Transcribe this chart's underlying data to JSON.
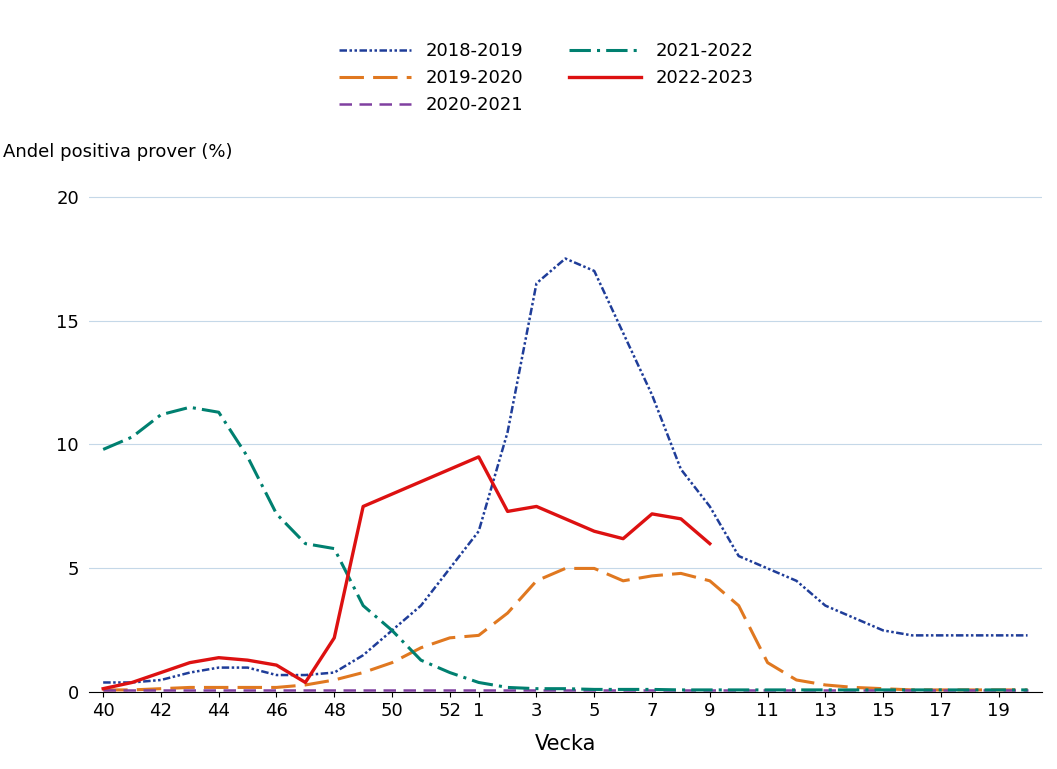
{
  "tick_weeks": [
    40,
    42,
    44,
    46,
    48,
    50,
    52,
    1,
    3,
    5,
    7,
    9,
    11,
    13,
    15,
    17,
    19
  ],
  "series": [
    {
      "label": "2018-2019",
      "color": "#1f3d99",
      "linewidth": 1.8,
      "linestyle_key": "dash_dot_dot",
      "weeks": [
        40,
        41,
        42,
        43,
        44,
        45,
        46,
        47,
        48,
        49,
        50,
        51,
        52,
        1,
        2,
        3,
        4,
        5,
        6,
        7,
        8,
        9,
        10,
        11,
        12,
        13,
        14,
        15,
        16,
        17,
        18,
        19,
        20
      ],
      "values": [
        0.4,
        0.4,
        0.5,
        0.8,
        1.0,
        1.0,
        0.7,
        0.7,
        0.8,
        1.5,
        2.5,
        3.5,
        5.0,
        6.5,
        10.5,
        16.5,
        17.5,
        17.0,
        14.5,
        12.0,
        9.0,
        7.5,
        5.5,
        5.0,
        4.5,
        3.5,
        3.0,
        2.5,
        2.3,
        2.3,
        2.3,
        2.3,
        2.3
      ]
    },
    {
      "label": "2019-2020",
      "color": "#e07820",
      "linewidth": 2.2,
      "linestyle_key": "dashed_long",
      "weeks": [
        40,
        41,
        42,
        43,
        44,
        45,
        46,
        47,
        48,
        49,
        50,
        51,
        52,
        1,
        2,
        3,
        4,
        5,
        6,
        7,
        8,
        9,
        10,
        11,
        12,
        13,
        14,
        15,
        16,
        17,
        18,
        19,
        20
      ],
      "values": [
        0.1,
        0.1,
        0.15,
        0.2,
        0.2,
        0.2,
        0.2,
        0.3,
        0.5,
        0.8,
        1.2,
        1.8,
        2.2,
        2.3,
        3.2,
        4.5,
        5.0,
        5.0,
        4.5,
        4.7,
        4.8,
        4.5,
        3.5,
        1.2,
        0.5,
        0.3,
        0.2,
        0.15,
        0.1,
        0.1,
        0.1,
        0.1,
        0.1
      ]
    },
    {
      "label": "2020-2021",
      "color": "#8040a0",
      "linewidth": 1.8,
      "linestyle_key": "dashed_short",
      "weeks": [
        40,
        41,
        42,
        43,
        44,
        45,
        46,
        47,
        48,
        49,
        50,
        51,
        52,
        1,
        2,
        3,
        4,
        5,
        6,
        7,
        8,
        9,
        10,
        11,
        12,
        13,
        14,
        15,
        16,
        17,
        18,
        19,
        20
      ],
      "values": [
        0.1,
        0.1,
        0.1,
        0.1,
        0.1,
        0.1,
        0.1,
        0.1,
        0.1,
        0.1,
        0.1,
        0.1,
        0.1,
        0.1,
        0.1,
        0.1,
        0.1,
        0.1,
        0.1,
        0.1,
        0.1,
        0.1,
        0.1,
        0.1,
        0.1,
        0.1,
        0.1,
        0.1,
        0.1,
        0.1,
        0.1,
        0.1,
        0.1
      ]
    },
    {
      "label": "2021-2022",
      "color": "#008070",
      "linewidth": 2.2,
      "linestyle_key": "dash_dot",
      "weeks": [
        40,
        41,
        42,
        43,
        44,
        45,
        46,
        47,
        48,
        49,
        50,
        51,
        52,
        1,
        2,
        3,
        4,
        5,
        6,
        7,
        8,
        9,
        10,
        11,
        12,
        13,
        14,
        15,
        16,
        17,
        18,
        19,
        20
      ],
      "values": [
        9.8,
        10.3,
        11.2,
        11.5,
        11.3,
        9.5,
        7.2,
        6.0,
        5.8,
        3.5,
        2.5,
        1.3,
        0.8,
        0.4,
        0.2,
        0.15,
        0.15,
        0.12,
        0.12,
        0.12,
        0.1,
        0.1,
        0.1,
        0.1,
        0.1,
        0.1,
        0.1,
        0.1,
        0.1,
        0.1,
        0.1,
        0.1,
        0.1
      ]
    },
    {
      "label": "2022-2023",
      "color": "#dd1111",
      "linewidth": 2.4,
      "linestyle_key": "solid",
      "weeks": [
        40,
        41,
        42,
        43,
        44,
        45,
        46,
        47,
        48,
        49,
        50,
        51,
        52,
        1,
        2,
        3,
        4,
        5,
        6,
        7,
        8,
        9
      ],
      "values": [
        0.15,
        0.4,
        0.8,
        1.2,
        1.4,
        1.3,
        1.1,
        0.4,
        2.2,
        7.5,
        8.0,
        8.5,
        9.0,
        9.5,
        7.3,
        7.5,
        7.0,
        6.5,
        6.2,
        7.2,
        7.0,
        6.0
      ]
    }
  ],
  "ylabel": "Andel positiva prover (%)",
  "xlabel": "Vecka",
  "ylim": [
    0,
    21
  ],
  "yticks": [
    0,
    5,
    10,
    15,
    20
  ],
  "background_color": "#ffffff",
  "grid_color": "#c5d8e8"
}
